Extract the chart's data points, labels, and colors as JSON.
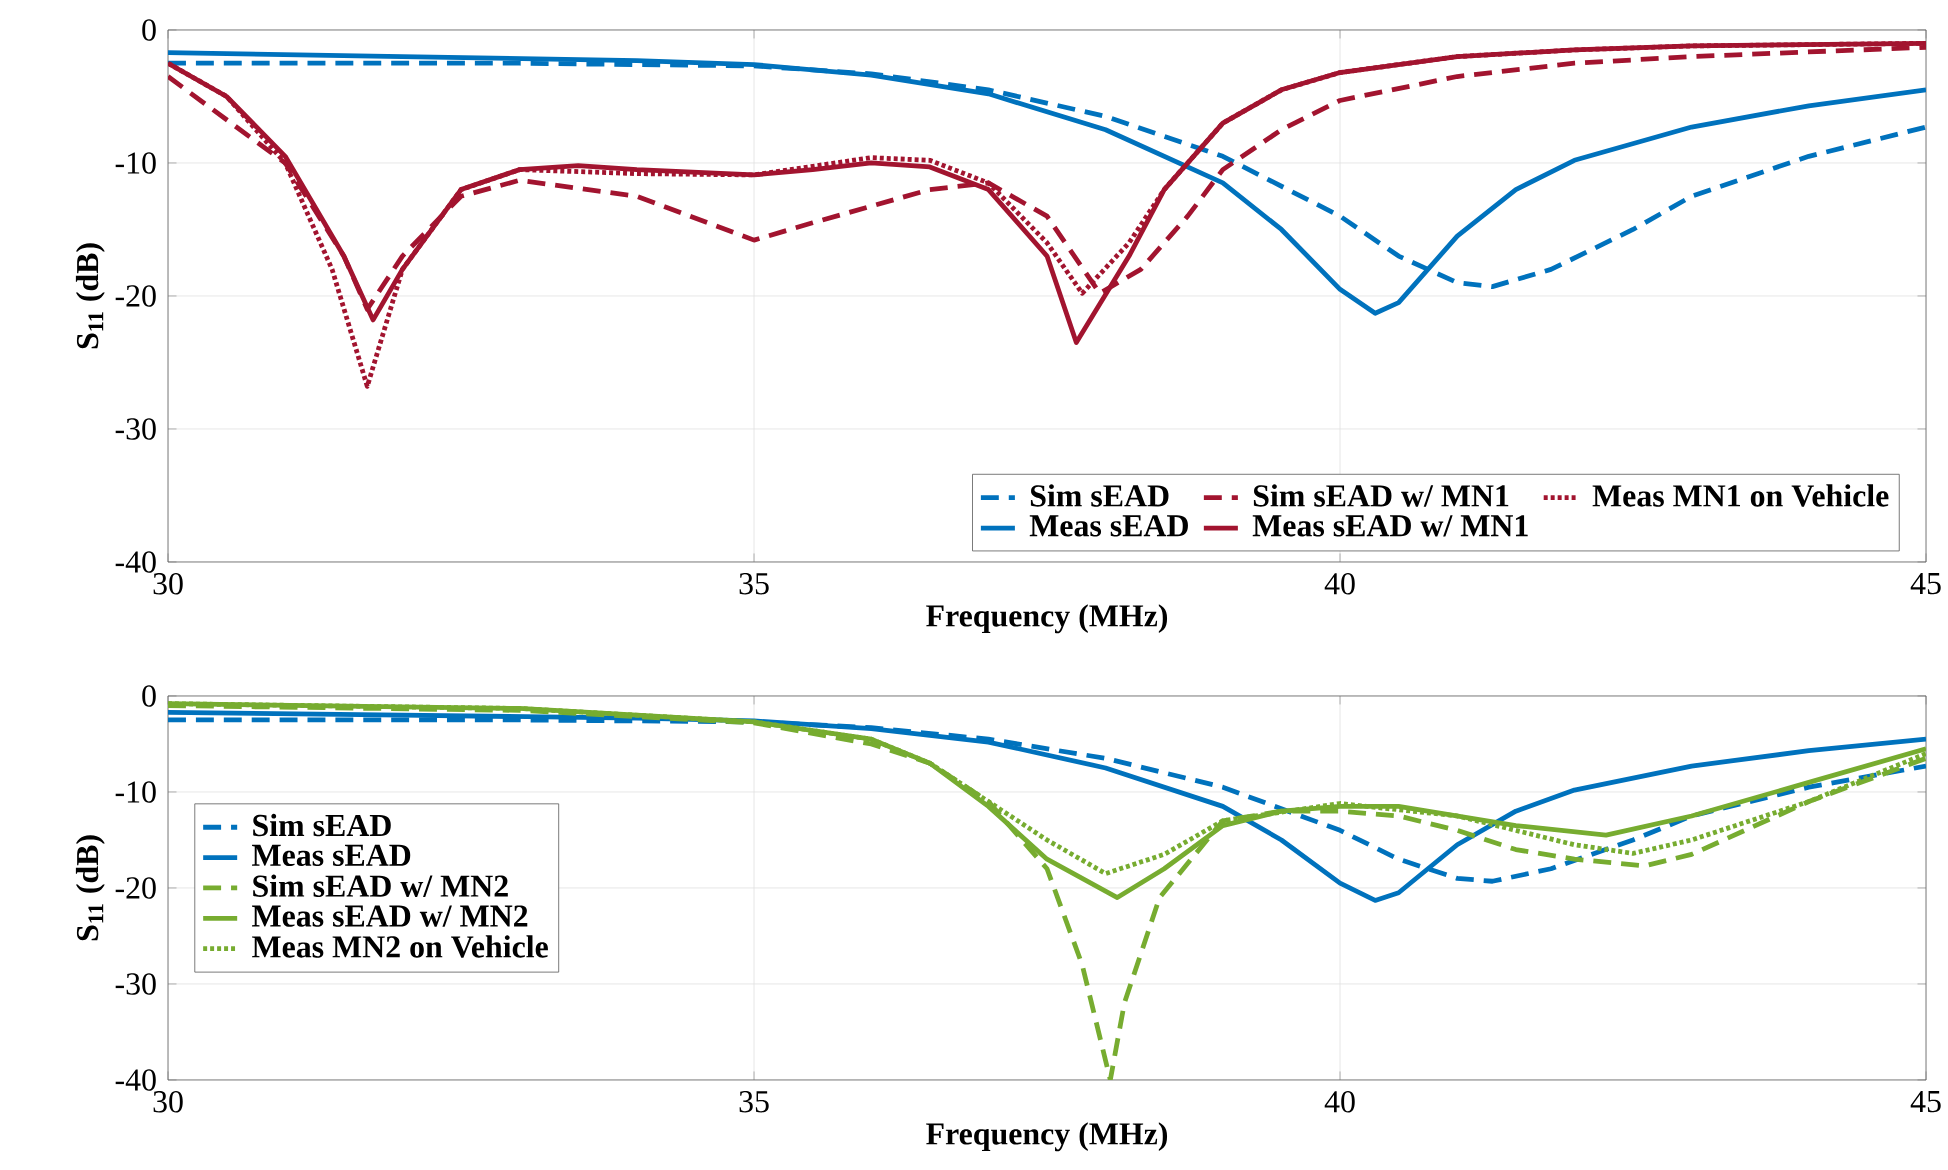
{
  "chart_data": [
    {
      "type": "line",
      "xlabel": "Frequency (MHz)",
      "ylabel": "S$_{11}$ (dB)",
      "xlim": [
        30,
        45
      ],
      "ylim": [
        -40,
        0
      ],
      "xticks": [
        30,
        35,
        40,
        45
      ],
      "yticks": [
        -40,
        -30,
        -20,
        -10,
        0
      ],
      "grid": true,
      "legend": "bottom right",
      "marker": "none",
      "series": [
        {
          "name": "Sim sEAD",
          "color": "#0072bd",
          "line_style": "dashed",
          "x": [
            30,
            33,
            35,
            36,
            37,
            38,
            39,
            40,
            40.5,
            41,
            41.3,
            41.8,
            42.5,
            43,
            44,
            45
          ],
          "values": [
            -2.5,
            -2.5,
            -2.7,
            -3.3,
            -4.5,
            -6.5,
            -9.5,
            -14,
            -17,
            -19,
            -19.3,
            -18,
            -15,
            -12.5,
            -9.5,
            -7.3
          ]
        },
        {
          "name": "Meas sEAD",
          "color": "#0072bd",
          "line_style": "solid",
          "x": [
            30,
            32,
            34,
            35,
            36,
            37,
            38,
            39,
            39.5,
            40,
            40.3,
            40.5,
            41,
            41.5,
            42,
            43,
            44,
            45
          ],
          "values": [
            -1.7,
            -2,
            -2.3,
            -2.6,
            -3.4,
            -4.8,
            -7.5,
            -11.5,
            -15,
            -19.5,
            -21.3,
            -20.5,
            -15.5,
            -12,
            -9.8,
            -7.3,
            -5.7,
            -4.5
          ]
        },
        {
          "name": "Sim sEAD w/ MN1",
          "color": "#a2142f",
          "line_style": "dashed",
          "x": [
            30,
            31,
            31.5,
            31.7,
            32,
            32.5,
            33,
            34,
            35,
            35.5,
            36.5,
            37,
            37.5,
            37.95,
            38.3,
            38.7,
            39,
            39.5,
            40,
            41,
            42,
            43,
            45
          ],
          "values": [
            -3.5,
            -10,
            -17,
            -21,
            -17,
            -12.5,
            -11.3,
            -12.5,
            -15.8,
            -14.5,
            -12,
            -11.5,
            -14,
            -19.8,
            -18,
            -14,
            -10.5,
            -7.5,
            -5.3,
            -3.5,
            -2.5,
            -2,
            -1.3
          ]
        },
        {
          "name": "Meas sEAD w/ MN1",
          "color": "#a2142f",
          "line_style": "solid",
          "x": [
            30,
            30.5,
            31,
            31.5,
            31.75,
            32,
            32.5,
            33,
            33.5,
            34,
            35,
            35.5,
            36,
            36.5,
            37,
            37.5,
            37.75,
            38.2,
            38.5,
            39,
            39.5,
            40,
            41,
            42,
            43,
            45
          ],
          "values": [
            -2.5,
            -5,
            -9.5,
            -17,
            -21.8,
            -18,
            -12,
            -10.5,
            -10.2,
            -10.5,
            -10.9,
            -10.5,
            -10,
            -10.3,
            -12,
            -17,
            -23.5,
            -17,
            -12,
            -7,
            -4.5,
            -3.2,
            -2,
            -1.5,
            -1.2,
            -1
          ]
        },
        {
          "name": "Meas MN1 on Vehicle",
          "color": "#a2142f",
          "line_style": "dotted",
          "x": [
            30,
            30.5,
            31,
            31.4,
            31.7,
            32,
            32.5,
            33,
            34,
            35,
            36,
            36.5,
            37,
            37.5,
            37.8,
            38.2,
            38.5,
            39,
            39.5,
            40,
            41,
            42,
            43,
            45
          ],
          "values": [
            -2.5,
            -5,
            -10,
            -18,
            -26.8,
            -18,
            -12,
            -10.5,
            -10.8,
            -10.9,
            -9.6,
            -9.8,
            -11.5,
            -16,
            -19.8,
            -16,
            -12,
            -7,
            -4.5,
            -3.2,
            -2,
            -1.5,
            -1.2,
            -1
          ]
        }
      ]
    },
    {
      "type": "line",
      "xlabel": "Frequency (MHz)",
      "ylabel": "S$_{11}$ (dB)",
      "xlim": [
        30,
        45
      ],
      "ylim": [
        -40,
        0
      ],
      "xticks": [
        30,
        35,
        40,
        45
      ],
      "yticks": [
        -40,
        -30,
        -20,
        -10,
        0
      ],
      "grid": true,
      "legend": "left",
      "marker": "none",
      "series": [
        {
          "name": "Sim sEAD",
          "color": "#0072bd",
          "line_style": "dashed",
          "x": [
            30,
            33,
            35,
            36,
            37,
            38,
            39,
            40,
            40.5,
            41,
            41.3,
            41.8,
            42.5,
            43,
            44,
            45
          ],
          "values": [
            -2.5,
            -2.5,
            -2.7,
            -3.3,
            -4.5,
            -6.5,
            -9.5,
            -14,
            -17,
            -19,
            -19.3,
            -18,
            -15,
            -12.5,
            -9.5,
            -7.3
          ]
        },
        {
          "name": "Meas sEAD",
          "color": "#0072bd",
          "line_style": "solid",
          "x": [
            30,
            32,
            34,
            35,
            36,
            37,
            38,
            39,
            39.5,
            40,
            40.3,
            40.5,
            41,
            41.5,
            42,
            43,
            44,
            45
          ],
          "values": [
            -1.7,
            -2,
            -2.3,
            -2.6,
            -3.4,
            -4.8,
            -7.5,
            -11.5,
            -15,
            -19.5,
            -21.3,
            -20.5,
            -15.5,
            -12,
            -9.8,
            -7.3,
            -5.7,
            -4.5
          ]
        },
        {
          "name": "Sim sEAD w/ MN2",
          "color": "#77ac30",
          "line_style": "dashed",
          "x": [
            30,
            33,
            35,
            36,
            36.5,
            37,
            37.5,
            37.8,
            38.04,
            38.16,
            38.46,
            39,
            39.5,
            40,
            40.5,
            41,
            41.5,
            42,
            42.6,
            43,
            44,
            45
          ],
          "values": [
            -1,
            -1.5,
            -2.8,
            -5,
            -7,
            -11,
            -18,
            -28,
            -40,
            -32,
            -21,
            -13,
            -12,
            -12,
            -12.5,
            -14,
            -16,
            -17,
            -17.7,
            -16.5,
            -11,
            -6.5
          ]
        },
        {
          "name": "Meas sEAD w/ MN2",
          "color": "#77ac30",
          "line_style": "solid",
          "x": [
            30,
            33,
            35,
            36,
            36.5,
            37,
            37.5,
            38.1,
            38.5,
            39,
            39.5,
            40,
            40.5,
            41,
            41.5,
            42.27,
            43,
            44,
            45
          ],
          "values": [
            -0.8,
            -1.3,
            -2.7,
            -4.5,
            -7,
            -11.5,
            -17,
            -21,
            -18,
            -13.5,
            -12,
            -11.5,
            -11.5,
            -12.5,
            -13.5,
            -14.5,
            -12.5,
            -9,
            -5.5
          ]
        },
        {
          "name": "Meas MN2 on Vehicle",
          "color": "#77ac30",
          "line_style": "dotted",
          "x": [
            30,
            33,
            35,
            36,
            36.5,
            37,
            37.5,
            38,
            38.5,
            39,
            40,
            41,
            42,
            42.5,
            43,
            44,
            45
          ],
          "values": [
            -0.8,
            -1.3,
            -2.7,
            -4.5,
            -7,
            -11,
            -15,
            -18.5,
            -16.5,
            -13,
            -11.2,
            -12.5,
            -15.5,
            -16.4,
            -15,
            -11,
            -6
          ]
        }
      ]
    }
  ]
}
